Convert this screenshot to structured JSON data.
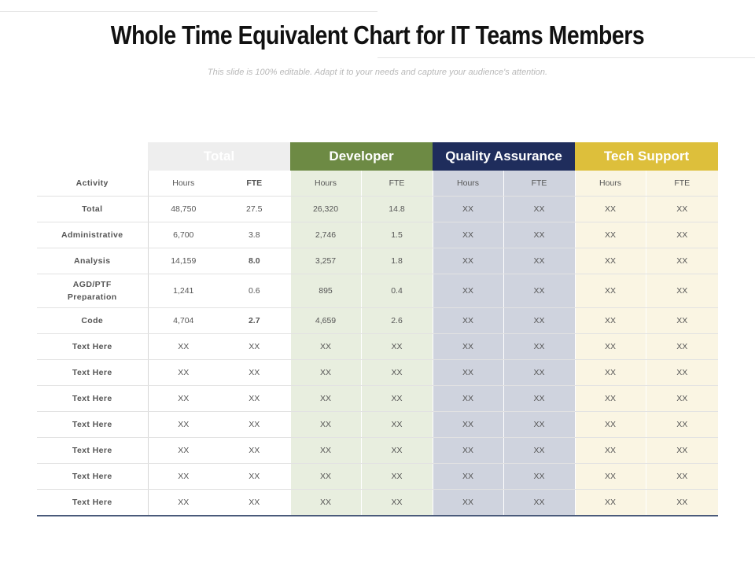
{
  "title": "Whole Time Equivalent Chart for IT Teams Members",
  "subtitle": "This slide is 100% editable. Adapt it to your needs and capture your audience's attention.",
  "table": {
    "groups": [
      "Total",
      "Developer",
      "Quality Assurance",
      "Tech Support"
    ],
    "activity_label": "Activity",
    "sub_headers": [
      "Hours",
      "FTE",
      "Hours",
      "FTE",
      "Hours",
      "FTE",
      "Hours",
      "FTE"
    ],
    "highlight_color": "#d0251b",
    "group_colors": {
      "total": "#eeeeee",
      "developer": "#6d8a44",
      "qa": "#1f2d5c",
      "tech_support": "#ddbf3b"
    },
    "rows": [
      {
        "label": "Total",
        "cells": [
          "48,750",
          "27.5",
          "26,320",
          "14.8",
          "XX",
          "XX",
          "XX",
          "XX"
        ]
      },
      {
        "label": "Administrative",
        "cells": [
          "6,700",
          "3.8",
          "2,746",
          "1.5",
          "XX",
          "XX",
          "XX",
          "XX"
        ]
      },
      {
        "label": "Analysis",
        "cells": [
          "14,159",
          "8.0",
          "3,257",
          "1.8",
          "XX",
          "XX",
          "XX",
          "XX"
        ]
      },
      {
        "label": "AGD/PTF Preparation",
        "cells": [
          "1,241",
          "0.6",
          "895",
          "0.4",
          "XX",
          "XX",
          "XX",
          "XX"
        ]
      },
      {
        "label": "Code",
        "cells": [
          "4,704",
          "2.7",
          "4,659",
          "2.6",
          "XX",
          "XX",
          "XX",
          "XX"
        ]
      },
      {
        "label": "Text Here",
        "cells": [
          "XX",
          "XX",
          "XX",
          "XX",
          "XX",
          "XX",
          "XX",
          "XX"
        ]
      },
      {
        "label": "Text Here",
        "cells": [
          "XX",
          "XX",
          "XX",
          "XX",
          "XX",
          "XX",
          "XX",
          "XX"
        ]
      },
      {
        "label": "Text Here",
        "cells": [
          "XX",
          "XX",
          "XX",
          "XX",
          "XX",
          "XX",
          "XX",
          "XX"
        ]
      },
      {
        "label": "Text Here",
        "cells": [
          "XX",
          "XX",
          "XX",
          "XX",
          "XX",
          "XX",
          "XX",
          "XX"
        ]
      },
      {
        "label": "Text Here",
        "cells": [
          "XX",
          "XX",
          "XX",
          "XX",
          "XX",
          "XX",
          "XX",
          "XX"
        ]
      },
      {
        "label": "Text Here",
        "cells": [
          "XX",
          "XX",
          "XX",
          "XX",
          "XX",
          "XX",
          "XX",
          "XX"
        ]
      },
      {
        "label": "Text Here",
        "cells": [
          "XX",
          "XX",
          "XX",
          "XX",
          "XX",
          "XX",
          "XX",
          "XX"
        ]
      }
    ]
  }
}
